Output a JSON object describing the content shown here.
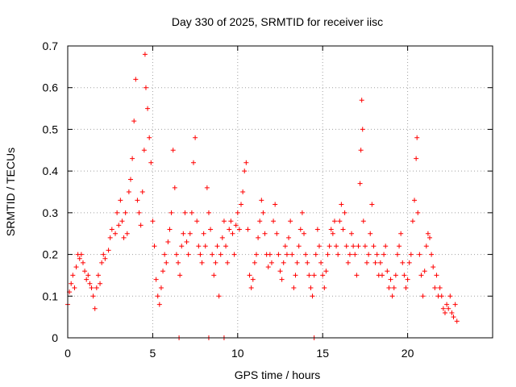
{
  "chart_data": {
    "type": "scatter",
    "title": "Day 330 of 2025, SRMTID for receiver iisc",
    "xlabel": "GPS time / hours",
    "ylabel": "SRMTID / TECUs",
    "xlim": [
      0,
      25
    ],
    "ylim": [
      0,
      0.7
    ],
    "xticks": [
      0,
      5,
      10,
      15,
      20
    ],
    "xtick_labels": [
      "0",
      "5",
      "10",
      "15",
      "20"
    ],
    "yticks": [
      0,
      0.1,
      0.2,
      0.3,
      0.4,
      0.5,
      0.6,
      0.7
    ],
    "ytick_labels": [
      "0",
      "0.1",
      "0.2",
      "0.3",
      "0.4",
      "0.5",
      "0.6",
      "0.7"
    ],
    "grid": true,
    "marker": "+",
    "color": "#ff0000",
    "series": [
      {
        "name": "SRMTID",
        "points": [
          [
            0.0,
            0.08
          ],
          [
            0.1,
            0.11
          ],
          [
            0.2,
            0.13
          ],
          [
            0.3,
            0.15
          ],
          [
            0.4,
            0.12
          ],
          [
            0.5,
            0.17
          ],
          [
            0.6,
            0.2
          ],
          [
            0.7,
            0.19
          ],
          [
            0.8,
            0.2
          ],
          [
            0.9,
            0.18
          ],
          [
            1.0,
            0.16
          ],
          [
            1.1,
            0.14
          ],
          [
            1.2,
            0.15
          ],
          [
            1.3,
            0.13
          ],
          [
            1.4,
            0.12
          ],
          [
            1.5,
            0.1
          ],
          [
            1.6,
            0.07
          ],
          [
            1.7,
            0.12
          ],
          [
            1.8,
            0.15
          ],
          [
            1.9,
            0.13
          ],
          [
            2.0,
            0.18
          ],
          [
            2.1,
            0.2
          ],
          [
            2.2,
            0.19
          ],
          [
            2.4,
            0.21
          ],
          [
            2.5,
            0.24
          ],
          [
            2.6,
            0.26
          ],
          [
            2.8,
            0.25
          ],
          [
            2.9,
            0.3
          ],
          [
            3.0,
            0.27
          ],
          [
            3.1,
            0.33
          ],
          [
            3.2,
            0.28
          ],
          [
            3.3,
            0.24
          ],
          [
            3.4,
            0.3
          ],
          [
            3.5,
            0.25
          ],
          [
            3.6,
            0.35
          ],
          [
            3.7,
            0.38
          ],
          [
            3.8,
            0.43
          ],
          [
            3.9,
            0.52
          ],
          [
            4.0,
            0.62
          ],
          [
            4.1,
            0.33
          ],
          [
            4.2,
            0.3
          ],
          [
            4.3,
            0.27
          ],
          [
            4.4,
            0.35
          ],
          [
            4.5,
            0.45
          ],
          [
            4.55,
            0.68
          ],
          [
            4.6,
            0.6
          ],
          [
            4.7,
            0.55
          ],
          [
            4.8,
            0.48
          ],
          [
            4.9,
            0.42
          ],
          [
            5.0,
            0.28
          ],
          [
            5.1,
            0.22
          ],
          [
            5.2,
            0.14
          ],
          [
            5.3,
            0.1
          ],
          [
            5.4,
            0.08
          ],
          [
            5.5,
            0.12
          ],
          [
            5.6,
            0.16
          ],
          [
            5.7,
            0.2
          ],
          [
            5.8,
            0.18
          ],
          [
            5.9,
            0.23
          ],
          [
            6.0,
            0.26
          ],
          [
            6.1,
            0.3
          ],
          [
            6.2,
            0.45
          ],
          [
            6.3,
            0.36
          ],
          [
            6.4,
            0.2
          ],
          [
            6.5,
            0.18
          ],
          [
            6.6,
            0.15
          ],
          [
            6.7,
            0.22
          ],
          [
            6.8,
            0.25
          ],
          [
            6.9,
            0.3
          ],
          [
            7.0,
            0.23
          ],
          [
            7.1,
            0.2
          ],
          [
            7.2,
            0.25
          ],
          [
            7.3,
            0.3
          ],
          [
            7.4,
            0.42
          ],
          [
            7.5,
            0.48
          ],
          [
            7.6,
            0.28
          ],
          [
            7.7,
            0.22
          ],
          [
            7.8,
            0.2
          ],
          [
            7.9,
            0.18
          ],
          [
            8.0,
            0.25
          ],
          [
            8.1,
            0.22
          ],
          [
            8.2,
            0.36
          ],
          [
            8.3,
            0.3
          ],
          [
            8.4,
            0.26
          ],
          [
            8.5,
            0.2
          ],
          [
            8.6,
            0.15
          ],
          [
            8.7,
            0.18
          ],
          [
            8.8,
            0.22
          ],
          [
            8.9,
            0.1
          ],
          [
            9.0,
            0.2
          ],
          [
            9.1,
            0.24
          ],
          [
            9.2,
            0.28
          ],
          [
            9.3,
            0.22
          ],
          [
            9.4,
            0.18
          ],
          [
            9.5,
            0.26
          ],
          [
            9.6,
            0.28
          ],
          [
            9.7,
            0.25
          ],
          [
            9.8,
            0.2
          ],
          [
            9.9,
            0.27
          ],
          [
            10.0,
            0.3
          ],
          [
            10.1,
            0.26
          ],
          [
            10.2,
            0.32
          ],
          [
            10.3,
            0.35
          ],
          [
            10.4,
            0.4
          ],
          [
            10.5,
            0.42
          ],
          [
            10.6,
            0.26
          ],
          [
            10.7,
            0.15
          ],
          [
            10.8,
            0.12
          ],
          [
            10.9,
            0.14
          ],
          [
            11.0,
            0.18
          ],
          [
            11.1,
            0.2
          ],
          [
            11.2,
            0.24
          ],
          [
            11.3,
            0.28
          ],
          [
            11.4,
            0.33
          ],
          [
            11.5,
            0.3
          ],
          [
            11.6,
            0.25
          ],
          [
            11.7,
            0.2
          ],
          [
            11.8,
            0.17
          ],
          [
            11.9,
            0.2
          ],
          [
            12.0,
            0.18
          ],
          [
            12.1,
            0.28
          ],
          [
            12.2,
            0.32
          ],
          [
            12.3,
            0.25
          ],
          [
            12.4,
            0.2
          ],
          [
            12.5,
            0.16
          ],
          [
            12.6,
            0.14
          ],
          [
            12.7,
            0.18
          ],
          [
            12.8,
            0.22
          ],
          [
            12.9,
            0.2
          ],
          [
            13.0,
            0.24
          ],
          [
            13.1,
            0.28
          ],
          [
            13.2,
            0.2
          ],
          [
            13.3,
            0.12
          ],
          [
            13.4,
            0.15
          ],
          [
            13.5,
            0.18
          ],
          [
            13.6,
            0.22
          ],
          [
            13.7,
            0.26
          ],
          [
            13.8,
            0.3
          ],
          [
            13.9,
            0.25
          ],
          [
            14.0,
            0.2
          ],
          [
            14.1,
            0.18
          ],
          [
            14.2,
            0.15
          ],
          [
            14.3,
            0.12
          ],
          [
            14.4,
            0.1
          ],
          [
            14.5,
            0.15
          ],
          [
            14.6,
            0.2
          ],
          [
            14.7,
            0.26
          ],
          [
            14.8,
            0.22
          ],
          [
            14.9,
            0.18
          ],
          [
            15.0,
            0.15
          ],
          [
            15.1,
            0.12
          ],
          [
            15.2,
            0.16
          ],
          [
            15.3,
            0.2
          ],
          [
            15.4,
            0.22
          ],
          [
            15.5,
            0.26
          ],
          [
            15.6,
            0.25
          ],
          [
            15.7,
            0.28
          ],
          [
            15.8,
            0.22
          ],
          [
            15.9,
            0.2
          ],
          [
            16.0,
            0.28
          ],
          [
            16.1,
            0.32
          ],
          [
            16.2,
            0.26
          ],
          [
            16.3,
            0.3
          ],
          [
            16.4,
            0.22
          ],
          [
            16.5,
            0.18
          ],
          [
            16.6,
            0.2
          ],
          [
            16.7,
            0.25
          ],
          [
            16.8,
            0.22
          ],
          [
            16.9,
            0.2
          ],
          [
            17.0,
            0.15
          ],
          [
            17.1,
            0.22
          ],
          [
            17.2,
            0.37
          ],
          [
            17.25,
            0.45
          ],
          [
            17.3,
            0.57
          ],
          [
            17.35,
            0.5
          ],
          [
            17.4,
            0.28
          ],
          [
            17.5,
            0.22
          ],
          [
            17.6,
            0.18
          ],
          [
            17.7,
            0.2
          ],
          [
            17.8,
            0.25
          ],
          [
            17.9,
            0.32
          ],
          [
            18.0,
            0.22
          ],
          [
            18.1,
            0.18
          ],
          [
            18.2,
            0.2
          ],
          [
            18.3,
            0.15
          ],
          [
            18.4,
            0.18
          ],
          [
            18.5,
            0.15
          ],
          [
            18.6,
            0.2
          ],
          [
            18.7,
            0.22
          ],
          [
            18.8,
            0.16
          ],
          [
            18.9,
            0.12
          ],
          [
            19.0,
            0.14
          ],
          [
            19.1,
            0.1
          ],
          [
            19.2,
            0.12
          ],
          [
            19.3,
            0.15
          ],
          [
            19.4,
            0.2
          ],
          [
            19.5,
            0.22
          ],
          [
            19.6,
            0.25
          ],
          [
            19.7,
            0.18
          ],
          [
            19.8,
            0.15
          ],
          [
            19.9,
            0.12
          ],
          [
            20.0,
            0.14
          ],
          [
            20.1,
            0.18
          ],
          [
            20.2,
            0.2
          ],
          [
            20.3,
            0.28
          ],
          [
            20.4,
            0.33
          ],
          [
            20.5,
            0.43
          ],
          [
            20.55,
            0.48
          ],
          [
            20.6,
            0.3
          ],
          [
            20.7,
            0.2
          ],
          [
            20.8,
            0.15
          ],
          [
            20.9,
            0.1
          ],
          [
            21.0,
            0.16
          ],
          [
            21.1,
            0.22
          ],
          [
            21.2,
            0.25
          ],
          [
            21.3,
            0.24
          ],
          [
            21.4,
            0.2
          ],
          [
            21.5,
            0.17
          ],
          [
            21.6,
            0.12
          ],
          [
            21.7,
            0.15
          ],
          [
            21.8,
            0.1
          ],
          [
            21.9,
            0.12
          ],
          [
            22.0,
            0.1
          ],
          [
            22.1,
            0.07
          ],
          [
            22.2,
            0.06
          ],
          [
            22.3,
            0.08
          ],
          [
            22.4,
            0.07
          ],
          [
            22.5,
            0.1
          ],
          [
            22.6,
            0.06
          ],
          [
            22.7,
            0.05
          ],
          [
            22.8,
            0.08
          ],
          [
            22.9,
            0.04
          ],
          [
            6.55,
            0.0
          ],
          [
            8.3,
            0.0
          ],
          [
            9.2,
            0.0
          ],
          [
            14.5,
            0.0
          ]
        ]
      }
    ]
  }
}
